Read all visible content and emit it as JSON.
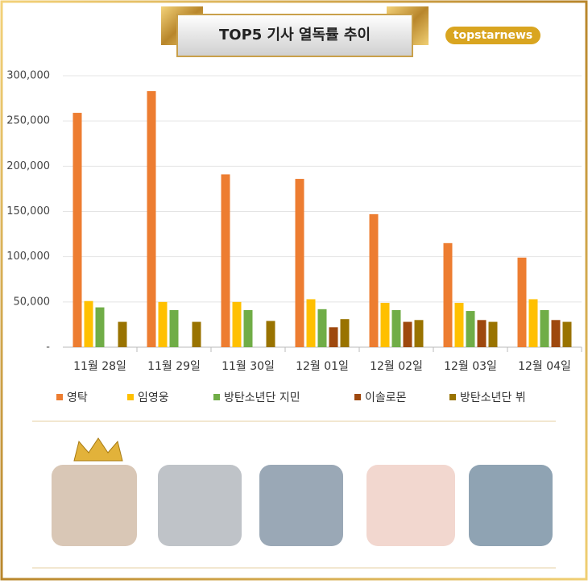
{
  "chart_data": {
    "type": "bar",
    "title": "TOP5 기사 열독률 추이",
    "brand": "topstarnews",
    "categories": [
      "11월 28일",
      "11월 29일",
      "11월 30일",
      "12월 01일",
      "12월 02일",
      "12월 03일",
      "12월 04일"
    ],
    "series": [
      {
        "name": "영탁",
        "color": "#ed7d31",
        "values": [
          259000,
          283000,
          191000,
          186000,
          147000,
          115000,
          99000
        ]
      },
      {
        "name": "임영웅",
        "color": "#ffc000",
        "values": [
          51000,
          50000,
          50000,
          53000,
          49000,
          49000,
          53000
        ]
      },
      {
        "name": "방탄소년단 지민",
        "color": "#70ad47",
        "values": [
          44000,
          41000,
          41000,
          42000,
          41000,
          40000,
          41000
        ]
      },
      {
        "name": "이솔로몬",
        "color": "#9e480e",
        "values": [
          null,
          null,
          null,
          22000,
          28000,
          30000,
          30000
        ]
      },
      {
        "name": "방탄소년단 뷔",
        "color": "#997300",
        "values": [
          28000,
          28000,
          29000,
          31000,
          30000,
          28000,
          28000
        ]
      }
    ],
    "ylim": [
      0,
      300000
    ],
    "yticks": [
      {
        "value": 0,
        "label": "-"
      },
      {
        "value": 50000,
        "label": "50,000"
      },
      {
        "value": 100000,
        "label": "100,000"
      },
      {
        "value": 150000,
        "label": "150,000"
      },
      {
        "value": 200000,
        "label": "200,000"
      },
      {
        "value": 250000,
        "label": "250,000"
      },
      {
        "value": 300000,
        "label": "300,000"
      }
    ],
    "grid": true,
    "legend": "bottom"
  }
}
